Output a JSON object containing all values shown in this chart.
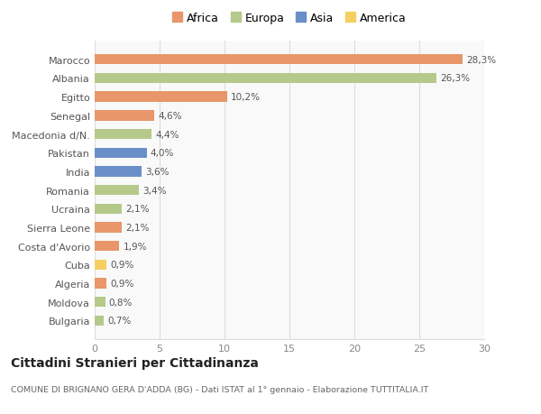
{
  "categories": [
    "Bulgaria",
    "Moldova",
    "Algeria",
    "Cuba",
    "Costa d'Avorio",
    "Sierra Leone",
    "Ucraina",
    "Romania",
    "India",
    "Pakistan",
    "Macedonia d/N.",
    "Senegal",
    "Egitto",
    "Albania",
    "Marocco"
  ],
  "values": [
    0.7,
    0.8,
    0.9,
    0.9,
    1.9,
    2.1,
    2.1,
    3.4,
    3.6,
    4.0,
    4.4,
    4.6,
    10.2,
    26.3,
    28.3
  ],
  "labels": [
    "0,7%",
    "0,8%",
    "0,9%",
    "0,9%",
    "1,9%",
    "2,1%",
    "2,1%",
    "3,4%",
    "3,6%",
    "4,0%",
    "4,4%",
    "4,6%",
    "10,2%",
    "26,3%",
    "28,3%"
  ],
  "colors": [
    "#b5c98a",
    "#b5c98a",
    "#e8966a",
    "#f5d060",
    "#e8966a",
    "#e8966a",
    "#b5c98a",
    "#b5c98a",
    "#6a8fc8",
    "#6a8fc8",
    "#b5c98a",
    "#e8966a",
    "#e8966a",
    "#b5c98a",
    "#e8966a"
  ],
  "legend_labels": [
    "Africa",
    "Europa",
    "Asia",
    "America"
  ],
  "legend_colors": [
    "#e8966a",
    "#b5c98a",
    "#6a8fc8",
    "#f5d060"
  ],
  "title": "Cittadini Stranieri per Cittadinanza",
  "subtitle": "COMUNE DI BRIGNANO GERA D'ADDA (BG) - Dati ISTAT al 1° gennaio - Elaborazione TUTTITALIA.IT",
  "xlim": [
    0,
    30
  ],
  "xticks": [
    0,
    5,
    10,
    15,
    20,
    25,
    30
  ],
  "background_color": "#ffffff",
  "plot_bg_color": "#f9f9f9",
  "grid_color": "#dddddd",
  "bar_height": 0.55
}
